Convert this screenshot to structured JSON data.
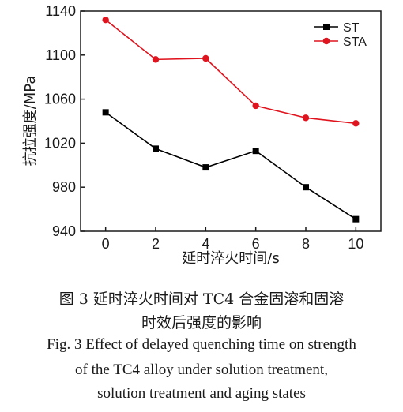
{
  "chart_data": {
    "type": "line",
    "title": "",
    "xlabel": "延时淬火时间/s",
    "ylabel": "抗拉强度/MPa",
    "x": [
      0,
      2,
      4,
      6,
      8,
      10
    ],
    "xticks": [
      "0",
      "2",
      "4",
      "6",
      "8",
      "10"
    ],
    "yticks": [
      "940",
      "980",
      "1020",
      "1060",
      "1100",
      "1140"
    ],
    "xlim": [
      -1,
      11
    ],
    "ylim": [
      940,
      1140
    ],
    "grid": false,
    "legend_position": "top-right",
    "series": [
      {
        "name": "ST",
        "color": "#000000",
        "marker": "square",
        "values": [
          1048,
          1015,
          998,
          1013,
          980,
          951
        ]
      },
      {
        "name": "STA",
        "color": "#e0141e",
        "marker": "circle",
        "values": [
          1132,
          1096,
          1097,
          1054,
          1043,
          1038
        ]
      }
    ]
  },
  "caption": {
    "cn_line1": "图 3   延时淬火时间对 TC4 合金固溶和固溶",
    "cn_line2": "时效后强度的影响",
    "en_line1": "Fig. 3   Effect of delayed quenching time on strength",
    "en_line2": "of the TC4 alloy under solution treatment,",
    "en_line3": "solution treatment and aging states"
  }
}
